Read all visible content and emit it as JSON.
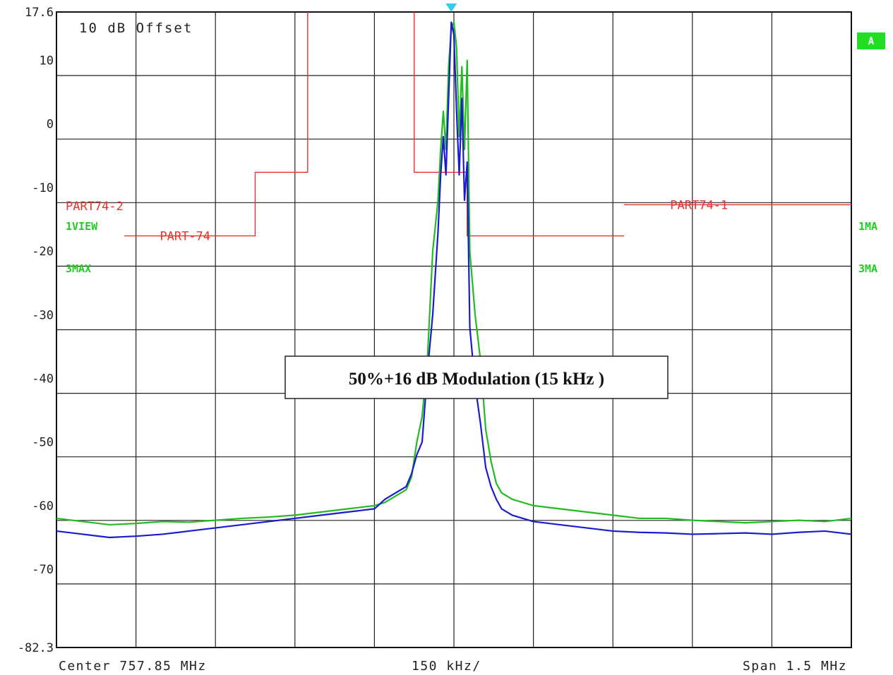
{
  "chart_data": {
    "type": "line",
    "offset_label": "10 dB Offset",
    "annotation": "50%+16 dB Modulation (15 kHz )",
    "x_labels": {
      "center": "Center 757.85 MHz",
      "div": "150 kHz/",
      "span": "Span 1.5 MHz"
    },
    "xlim": [
      757.1,
      758.6
    ],
    "ylim": [
      -82.3,
      17.6
    ],
    "yticks": [
      {
        "v": 17.6,
        "label": "17.6"
      },
      {
        "v": 10,
        "label": "10"
      },
      {
        "v": 0,
        "label": "0"
      },
      {
        "v": -10,
        "label": "-10"
      },
      {
        "v": -20,
        "label": "-20"
      },
      {
        "v": -30,
        "label": "-30"
      },
      {
        "v": -40,
        "label": "-40"
      },
      {
        "v": -50,
        "label": "-50"
      },
      {
        "v": -60,
        "label": "-60"
      },
      {
        "v": -70,
        "label": "-70"
      },
      {
        "v": -82.3,
        "label": "-82.3"
      }
    ],
    "grid": true,
    "side_labels": {
      "left": [
        {
          "id": "part74-2-label",
          "text": "PART74-2",
          "color": "#e8322d"
        },
        {
          "id": "trace1-view-label",
          "text": "1VIEW",
          "color": "#22cc22"
        },
        {
          "id": "trace3-max-label",
          "text": "3MAX",
          "color": "#22cc22"
        }
      ],
      "right": [
        {
          "id": "trace-a-badge",
          "text": "A",
          "color": "#22dd22"
        },
        {
          "id": "trace1-ma-label",
          "text": "1MA",
          "color": "#22cc22"
        },
        {
          "id": "trace3-ma-label",
          "text": "3MA",
          "color": "#22cc22"
        }
      ]
    },
    "limit_lines": [
      {
        "name": "PART-74",
        "color": "#e8322d",
        "points": [
          [
            757.228,
            -17.6
          ],
          [
            757.475,
            -17.6
          ],
          [
            757.475,
            -7.6
          ],
          [
            757.574,
            -7.6
          ],
          [
            757.574,
            17.6
          ]
        ]
      },
      {
        "name": "PART-74",
        "color": "#e8322d",
        "points": [
          [
            757.775,
            17.6
          ],
          [
            757.775,
            -7.6
          ],
          [
            757.875,
            -7.6
          ],
          [
            757.875,
            -17.6
          ],
          [
            758.171,
            -17.6
          ]
        ]
      },
      {
        "name": "PART74-1",
        "color": "#e8322d",
        "points": [
          [
            758.171,
            -12.7
          ],
          [
            758.6,
            -12.7
          ]
        ]
      }
    ],
    "limit_labels": [
      {
        "id": "part-74-label",
        "text": "PART-74",
        "x": 757.295,
        "y": -17.6
      },
      {
        "id": "part74-1-label",
        "text": "PART74-1",
        "x": 758.258,
        "y": -12.7
      }
    ],
    "marker": {
      "x": 757.845,
      "y": 17.6,
      "color": "#33ccee"
    },
    "series": [
      {
        "name": "1VIEW",
        "color": "#22bb22",
        "x": [
          757.1,
          757.15,
          757.2,
          757.25,
          757.3,
          757.35,
          757.4,
          757.45,
          757.5,
          757.55,
          757.6,
          757.65,
          757.7,
          757.72,
          757.74,
          757.76,
          757.77,
          757.78,
          757.79,
          757.8,
          757.81,
          757.82,
          757.825,
          757.83,
          757.835,
          757.84,
          757.845,
          757.85,
          757.855,
          757.86,
          757.865,
          757.87,
          757.875,
          757.88,
          757.89,
          757.9,
          757.91,
          757.92,
          757.93,
          757.94,
          757.96,
          757.98,
          758.0,
          758.05,
          758.1,
          758.15,
          758.2,
          758.25,
          758.3,
          758.35,
          758.4,
          758.45,
          758.5,
          758.55,
          758.6
        ],
        "y": [
          -62,
          -62.5,
          -63,
          -62.8,
          -62.5,
          -62.6,
          -62.3,
          -62,
          -61.8,
          -61.5,
          -61,
          -60.5,
          -60,
          -59.5,
          -58.5,
          -57.5,
          -55.5,
          -50,
          -46,
          -37,
          -20,
          -12,
          -4,
          2,
          -4,
          9,
          15,
          16,
          12,
          -2,
          9,
          -4,
          10,
          -20,
          -30,
          -37,
          -48,
          -53,
          -56.5,
          -58,
          -59,
          -59.5,
          -60,
          -60.5,
          -61,
          -61.5,
          -62,
          -62,
          -62.3,
          -62.5,
          -62.7,
          -62.5,
          -62.3,
          -62.5,
          -62
        ]
      },
      {
        "name": "3MAX",
        "color": "#1a1ad0",
        "x": [
          757.1,
          757.15,
          757.2,
          757.25,
          757.3,
          757.35,
          757.4,
          757.45,
          757.5,
          757.55,
          757.6,
          757.65,
          757.7,
          757.72,
          757.74,
          757.76,
          757.77,
          757.78,
          757.79,
          757.8,
          757.81,
          757.82,
          757.825,
          757.83,
          757.835,
          757.84,
          757.845,
          757.85,
          757.855,
          757.86,
          757.865,
          757.87,
          757.875,
          757.88,
          757.89,
          757.9,
          757.91,
          757.92,
          757.93,
          757.94,
          757.96,
          757.98,
          758.0,
          758.05,
          758.1,
          758.15,
          758.2,
          758.25,
          758.3,
          758.35,
          758.4,
          758.45,
          758.5,
          758.55,
          758.6
        ],
        "y": [
          -64,
          -64.5,
          -65,
          -64.8,
          -64.5,
          -64,
          -63.5,
          -63,
          -62.5,
          -62,
          -61.5,
          -61,
          -60.5,
          -59,
          -58,
          -57,
          -55,
          -52,
          -50,
          -39,
          -30,
          -17,
          -8,
          -2,
          -8,
          4,
          16,
          14,
          2,
          -8,
          4,
          -12,
          -6,
          -32,
          -41,
          -47,
          -54,
          -57,
          -59,
          -60.5,
          -61.5,
          -62,
          -62.5,
          -63,
          -63.5,
          -64,
          -64.2,
          -64.3,
          -64.5,
          -64.4,
          -64.3,
          -64.5,
          -64.2,
          -64,
          -64.5
        ]
      }
    ]
  }
}
